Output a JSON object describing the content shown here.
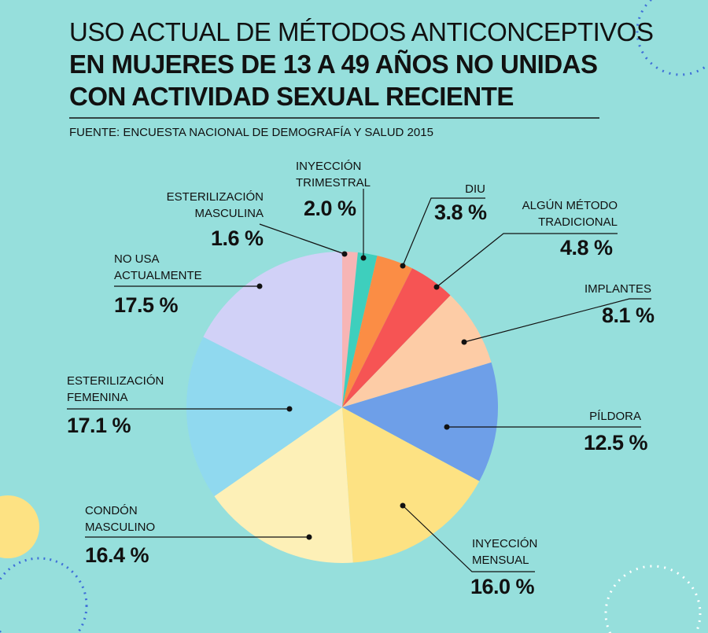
{
  "chart_data": {
    "type": "pie",
    "title": [
      "USO ACTUAL DE MÉTODOS ANTICONCEPTIVOS",
      "EN MUJERES DE 13 A 49 AÑOS NO UNIDAS",
      "CON ACTIVIDAD SEXUAL RECIENTE"
    ],
    "subtitle": "FUENTE: ENCUESTA NACIONAL DE DEMOGRAFÍA Y SALUD 2015",
    "categories": [
      "ESTERILIZACIÓN\nMASCULINA",
      "INYECCIÓN\nTRIMESTRAL",
      "DIU",
      "ALGÚN MÉTODO\nTRADICIONAL",
      "IMPLANTES",
      "PÍLDORA",
      "INYECCIÓN\nMENSUAL",
      "CONDÓN\nMASCULINO",
      "ESTERILIZACIÓN\nFEMENINA",
      "NO USA\nACTUALMENTE"
    ],
    "values": [
      1.6,
      2.0,
      3.8,
      4.8,
      8.1,
      12.5,
      16.0,
      16.4,
      17.1,
      17.5
    ],
    "value_labels": [
      "1.6 %",
      "2.0 %",
      "3.8 %",
      "4.8 %",
      "8.1 %",
      "12.5 %",
      "16.0 %",
      "16.4 %",
      "17.1 %",
      "17.5 %"
    ],
    "colors": [
      "#f7b5b5",
      "#3ecfbd",
      "#fb8d45",
      "#f65454",
      "#fdcca6",
      "#6e9fe8",
      "#fde283",
      "#fdf0b7",
      "#90d9ef",
      "#d1d1f7"
    ]
  }
}
